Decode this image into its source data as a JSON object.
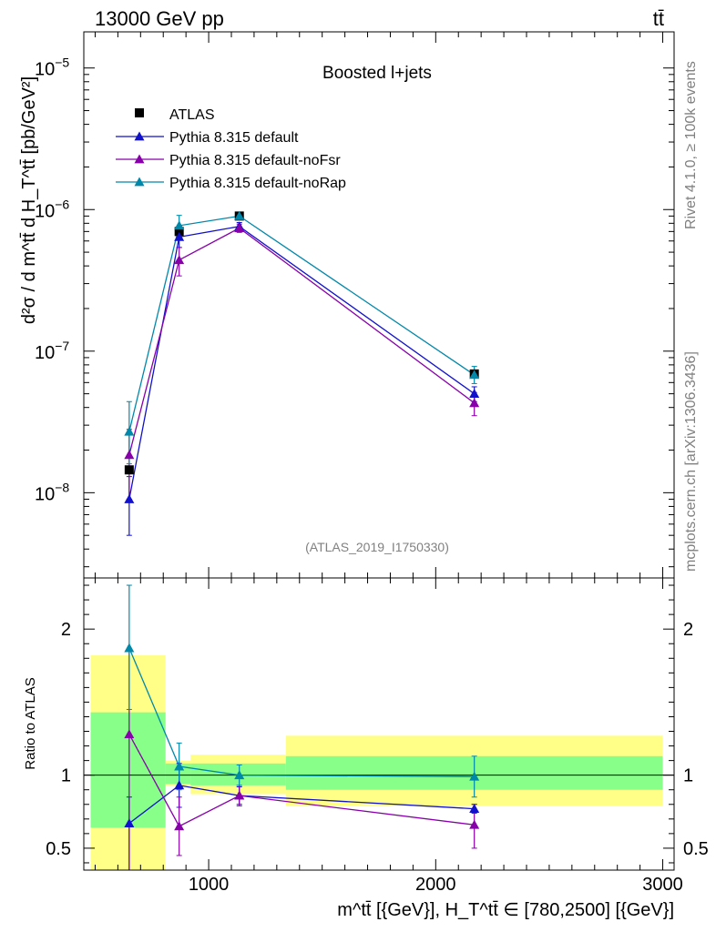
{
  "header": {
    "left": "13000 GeV pp",
    "right": "tt̄"
  },
  "watermark": {
    "rivet": "Rivet 4.1.0, ≥ 100k events",
    "site": "mcplots.cern.ch [arXiv:1306.3436]"
  },
  "chart_data": {
    "type": "scatter",
    "title": "Boosted l+jets",
    "analysis_label": "(ATLAS_2019_I1750330)",
    "ylabel": "d²σ / d m^tt̄ d H_T^tt̄ [pb/GeV²]",
    "xlabel": "m^tt̄ [{GeV}], H_T^tt̄ ∈ [780,2500] [{GeV}]",
    "ratio_ylabel": "Ratio to ATLAS",
    "xlim": [
      450,
      3050
    ],
    "ylim": [
      2.5e-09,
      1.8e-05
    ],
    "ratio_ylim": [
      0.35,
      2.35
    ],
    "x_ticks": [
      1000,
      2000,
      3000
    ],
    "y_ticks": [
      {
        "value": 1e-05,
        "label_base": "10",
        "label_exp": "−5"
      },
      {
        "value": 1e-06,
        "label_base": "10",
        "label_exp": "−6"
      },
      {
        "value": 1e-07,
        "label_base": "10",
        "label_exp": "−7"
      },
      {
        "value": 1e-08,
        "label_base": "10",
        "label_exp": "−8"
      }
    ],
    "ratio_ticks": [
      {
        "value": 0.5,
        "label": "0.5"
      },
      {
        "value": 1,
        "label": "1"
      },
      {
        "value": 2,
        "label": "2"
      }
    ],
    "bins": [
      {
        "lo": 480,
        "hi": 810
      },
      {
        "lo": 810,
        "hi": 920
      },
      {
        "lo": 920,
        "hi": 1340
      },
      {
        "lo": 1340,
        "hi": 3000
      }
    ],
    "data": {
      "name": "ATLAS",
      "color": "#000000",
      "x": [
        650,
        870,
        1135,
        2170
      ],
      "y": [
        1.45e-08,
        7e-07,
        9e-07,
        6.9e-08
      ],
      "band_inner": [
        [
          0.64,
          1.43
        ],
        [
          0.94,
          1.08
        ],
        [
          0.93,
          1.08
        ],
        [
          0.9,
          1.13
        ]
      ],
      "band_outer": [
        [
          0.35,
          1.82
        ],
        [
          0.93,
          1.1
        ],
        [
          0.87,
          1.14
        ],
        [
          0.79,
          1.27
        ]
      ]
    },
    "series": [
      {
        "name": "Pythia 8.315 default",
        "color": "#1111cc",
        "x": [
          650,
          870,
          1135,
          2170
        ],
        "y": [
          9e-09,
          6.4e-07,
          7.6e-07,
          5e-08
        ],
        "yerr": [
          [
            5e-09,
            1.3e-08
          ],
          [
            5.4e-07,
            7.4e-07
          ],
          [
            7.1e-07,
            8.1e-07
          ],
          [
            4.4e-08,
            5.6e-08
          ]
        ],
        "ratio": [
          0.67,
          0.93,
          0.86,
          0.77
        ],
        "ratio_err": [
          [
            0.35,
            0.85
          ],
          [
            0.78,
            1.08
          ],
          [
            0.8,
            0.92
          ],
          [
            0.74,
            0.8
          ]
        ]
      },
      {
        "name": "Pythia 8.315 default-noFsr",
        "color": "#8800aa",
        "x": [
          650,
          870,
          1135,
          2170
        ],
        "y": [
          1.85e-08,
          4.4e-07,
          7.4e-07,
          4.3e-08
        ],
        "yerr": [
          [
            9e-09,
            2.8e-08
          ],
          [
            3.4e-07,
            5.4e-07
          ],
          [
            6.9e-07,
            7.9e-07
          ],
          [
            3.5e-08,
            5.1e-08
          ]
        ],
        "ratio": [
          1.28,
          0.65,
          0.86,
          0.66
        ],
        "ratio_err": [
          [
            0.35,
            1.85
          ],
          [
            0.45,
            0.85
          ],
          [
            0.79,
            0.93
          ],
          [
            0.5,
            0.8
          ]
        ]
      },
      {
        "name": "Pythia 8.315 default-noRap",
        "color": "#0088aa",
        "x": [
          650,
          870,
          1135,
          2170
        ],
        "y": [
          2.7e-08,
          7.7e-07,
          9e-07,
          6.8e-08
        ],
        "yerr": [
          [
            1.6e-08,
            4.4e-08
          ],
          [
            6.4e-07,
            9.1e-07
          ],
          [
            8.5e-07,
            9.5e-07
          ],
          [
            5.9e-08,
            7.8e-08
          ]
        ],
        "ratio": [
          1.87,
          1.06,
          1.0,
          0.99
        ],
        "ratio_err": [
          [
            1.45,
            2.3
          ],
          [
            0.9,
            1.22
          ],
          [
            0.93,
            1.07
          ],
          [
            0.85,
            1.13
          ]
        ]
      }
    ]
  }
}
